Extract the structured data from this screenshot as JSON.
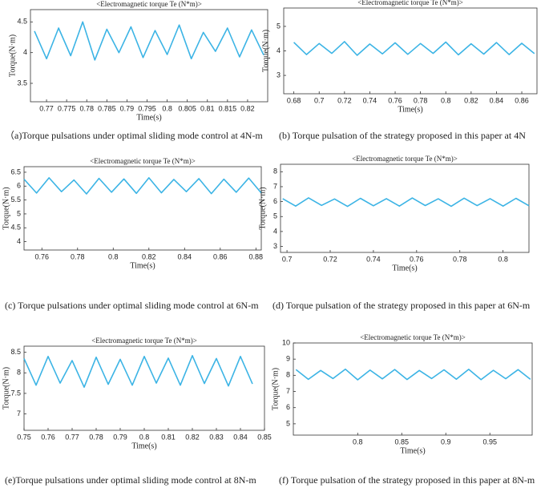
{
  "chart_data": [
    {
      "type": "line",
      "title": "<Electromagnetic torque Te (N*m)>",
      "xlabel": "Time(s)",
      "ylabel": "Torque(N·m)",
      "caption": "（a)Torque pulsations under optimal sliding mode control at 4N-m",
      "color": "#3cb4e5",
      "x": [
        0.767,
        0.77,
        0.773,
        0.776,
        0.779,
        0.782,
        0.785,
        0.788,
        0.791,
        0.794,
        0.797,
        0.8,
        0.803,
        0.806,
        0.809,
        0.812,
        0.815,
        0.818,
        0.821,
        0.824
      ],
      "values": [
        4.35,
        3.9,
        4.4,
        3.95,
        4.5,
        3.88,
        4.38,
        4.0,
        4.42,
        3.92,
        4.36,
        3.97,
        4.45,
        3.9,
        4.33,
        4.02,
        4.4,
        3.93,
        4.37,
        3.96
      ],
      "xlim": [
        0.766,
        0.825
      ],
      "ylim": [
        3.2,
        4.7
      ],
      "xticks": [
        0.77,
        0.775,
        0.78,
        0.785,
        0.79,
        0.795,
        0.8,
        0.805,
        0.81,
        0.815,
        0.82
      ],
      "yticks": [
        3.5,
        4,
        4.5
      ]
    },
    {
      "type": "line",
      "title": "<Electromagnetic torque Te (N*m)>",
      "xlabel": "Time(s)",
      "ylabel": "Torque(N·m)",
      "caption": "(b)  Torque pulsation of the strategy proposed in this paper at 4N",
      "color": "#3cb4e5",
      "x": [
        0.68,
        0.69,
        0.7,
        0.71,
        0.72,
        0.73,
        0.74,
        0.75,
        0.76,
        0.77,
        0.78,
        0.79,
        0.8,
        0.81,
        0.82,
        0.83,
        0.84,
        0.85,
        0.86,
        0.87
      ],
      "values": [
        4.35,
        3.85,
        4.3,
        3.9,
        4.38,
        3.82,
        4.28,
        3.88,
        4.33,
        3.86,
        4.3,
        3.9,
        4.36,
        3.84,
        4.29,
        3.87,
        4.34,
        3.85,
        4.31,
        3.89
      ],
      "xlim": [
        0.672,
        0.872
      ],
      "ylim": [
        2.25,
        5.75
      ],
      "xticks": [
        0.68,
        0.7,
        0.72,
        0.74,
        0.76,
        0.78,
        0.8,
        0.82,
        0.84,
        0.86
      ],
      "yticks": [
        3,
        4,
        5
      ]
    },
    {
      "type": "line",
      "title": "<Electromagnetic torque Te (N*m)>",
      "xlabel": "Time(s)",
      "ylabel": "Torque(N·m)",
      "caption": "(c)  Torque pulsations under optimal sliding mode control at 6N-m",
      "color": "#3cb4e5",
      "x": [
        0.75,
        0.757,
        0.764,
        0.771,
        0.778,
        0.785,
        0.792,
        0.799,
        0.806,
        0.813,
        0.82,
        0.827,
        0.834,
        0.841,
        0.848,
        0.855,
        0.862,
        0.869,
        0.876,
        0.883
      ],
      "values": [
        6.25,
        5.75,
        6.3,
        5.8,
        6.22,
        5.72,
        6.28,
        5.78,
        6.26,
        5.74,
        6.3,
        5.76,
        6.24,
        5.8,
        6.27,
        5.73,
        6.25,
        5.78,
        6.29,
        5.75
      ],
      "xlim": [
        0.75,
        0.883
      ],
      "ylim": [
        3.7,
        6.7
      ],
      "xticks": [
        0.76,
        0.78,
        0.8,
        0.82,
        0.84,
        0.86,
        0.88
      ],
      "yticks": [
        4,
        4.5,
        5,
        5.5,
        6,
        6.5
      ]
    },
    {
      "type": "line",
      "title": "<Electromagnetic torque Te (N*m)>",
      "xlabel": "Time(s)",
      "ylabel": "Torque(N·m)",
      "caption": "(d) Torque pulsation of the strategy proposed in this paper at 6N-m",
      "color": "#3cb4e5",
      "x": [
        0.698,
        0.704,
        0.71,
        0.716,
        0.722,
        0.728,
        0.734,
        0.74,
        0.746,
        0.752,
        0.758,
        0.764,
        0.77,
        0.776,
        0.782,
        0.788,
        0.794,
        0.8,
        0.806,
        0.812
      ],
      "values": [
        6.2,
        5.7,
        6.25,
        5.75,
        6.18,
        5.68,
        6.22,
        5.72,
        6.2,
        5.7,
        6.24,
        5.74,
        6.19,
        5.69,
        6.23,
        5.73,
        6.2,
        5.7,
        6.22,
        5.72
      ],
      "xlim": [
        0.697,
        0.812
      ],
      "ylim": [
        2.6,
        8.5
      ],
      "xticks": [
        0.7,
        0.72,
        0.74,
        0.76,
        0.78,
        0.8
      ],
      "yticks": [
        3,
        4,
        5,
        6,
        7,
        8
      ]
    },
    {
      "type": "line",
      "title": "<Electromagnetic torque Te (N*m)>",
      "xlabel": "Time(s)",
      "ylabel": "Torque(N·m)",
      "caption": "(e)Torque pulsations under optimal sliding mode control at 8N-m",
      "color": "#3cb4e5",
      "x": [
        0.75,
        0.755,
        0.76,
        0.765,
        0.77,
        0.775,
        0.78,
        0.785,
        0.79,
        0.795,
        0.8,
        0.805,
        0.81,
        0.815,
        0.82,
        0.825,
        0.83,
        0.835,
        0.84,
        0.845
      ],
      "values": [
        8.35,
        7.7,
        8.4,
        7.75,
        8.3,
        7.65,
        8.38,
        7.72,
        8.33,
        7.7,
        8.4,
        7.75,
        8.36,
        7.7,
        8.42,
        7.74,
        8.35,
        7.68,
        8.4,
        7.73
      ],
      "xlim": [
        0.75,
        0.85
      ],
      "ylim": [
        6.6,
        8.65
      ],
      "xticks": [
        0.75,
        0.76,
        0.77,
        0.78,
        0.79,
        0.8,
        0.81,
        0.82,
        0.83,
        0.84,
        0.85
      ],
      "yticks": [
        7,
        7.5,
        8,
        8.5
      ]
    },
    {
      "type": "line",
      "title": "<Electromagnetic torque Te (N*m)>",
      "xlabel": "Time(s)",
      "ylabel": "Torque(N·m)",
      "caption": "(f)  Torque pulsation of the strategy proposed in this paper at 8N-m",
      "color": "#3cb4e5",
      "x": [
        0.73,
        0.744,
        0.758,
        0.772,
        0.786,
        0.8,
        0.814,
        0.828,
        0.842,
        0.856,
        0.87,
        0.884,
        0.898,
        0.912,
        0.926,
        0.94,
        0.954,
        0.968,
        0.982,
        0.996
      ],
      "values": [
        8.35,
        7.75,
        8.3,
        7.8,
        8.38,
        7.72,
        8.32,
        7.78,
        8.36,
        7.74,
        8.3,
        7.8,
        8.34,
        7.76,
        8.37,
        7.73,
        8.31,
        7.79,
        8.35,
        7.75
      ],
      "xlim": [
        0.727,
        0.998
      ],
      "ylim": [
        4.3,
        10
      ],
      "xticks": [
        0.8,
        0.85,
        0.9,
        0.95
      ],
      "yticks": [
        5,
        6,
        7,
        8,
        9,
        10
      ]
    }
  ]
}
